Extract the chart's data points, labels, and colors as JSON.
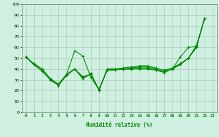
{
  "xlabel": "Humidité relative (%)",
  "xlim": [
    -0.5,
    23.5
  ],
  "ylim": [
    0,
    100
  ],
  "xticks": [
    0,
    1,
    2,
    3,
    4,
    5,
    6,
    7,
    8,
    9,
    10,
    11,
    12,
    13,
    14,
    15,
    16,
    17,
    18,
    19,
    20,
    21,
    22,
    23
  ],
  "yticks": [
    0,
    10,
    20,
    30,
    40,
    50,
    60,
    70,
    80,
    90,
    100
  ],
  "background_color": "#cff0e0",
  "grid_color": "#aaccbb",
  "line_color": "#008800",
  "lines": [
    [
      51,
      45,
      40,
      31,
      26,
      35,
      57,
      52,
      32,
      21,
      39,
      39,
      40,
      40,
      40,
      40,
      39,
      37,
      40,
      51,
      60,
      61,
      87
    ],
    [
      51,
      44,
      38,
      30,
      25,
      34,
      40,
      33,
      35,
      21,
      39,
      40,
      40,
      40,
      41,
      41,
      39,
      37,
      40,
      45,
      50,
      62,
      87
    ],
    [
      51,
      44,
      38,
      30,
      25,
      35,
      40,
      32,
      35,
      21,
      40,
      40,
      40,
      41,
      42,
      42,
      40,
      38,
      40,
      44,
      50,
      60,
      87
    ],
    [
      51,
      44,
      40,
      31,
      26,
      35,
      40,
      31,
      36,
      20,
      40,
      40,
      41,
      42,
      43,
      43,
      41,
      39,
      41,
      45,
      50,
      61,
      87
    ]
  ],
  "marker": "+",
  "markersize": 3,
  "linewidth": 0.8,
  "tick_fontsize": 4.5,
  "xlabel_fontsize": 5.5
}
